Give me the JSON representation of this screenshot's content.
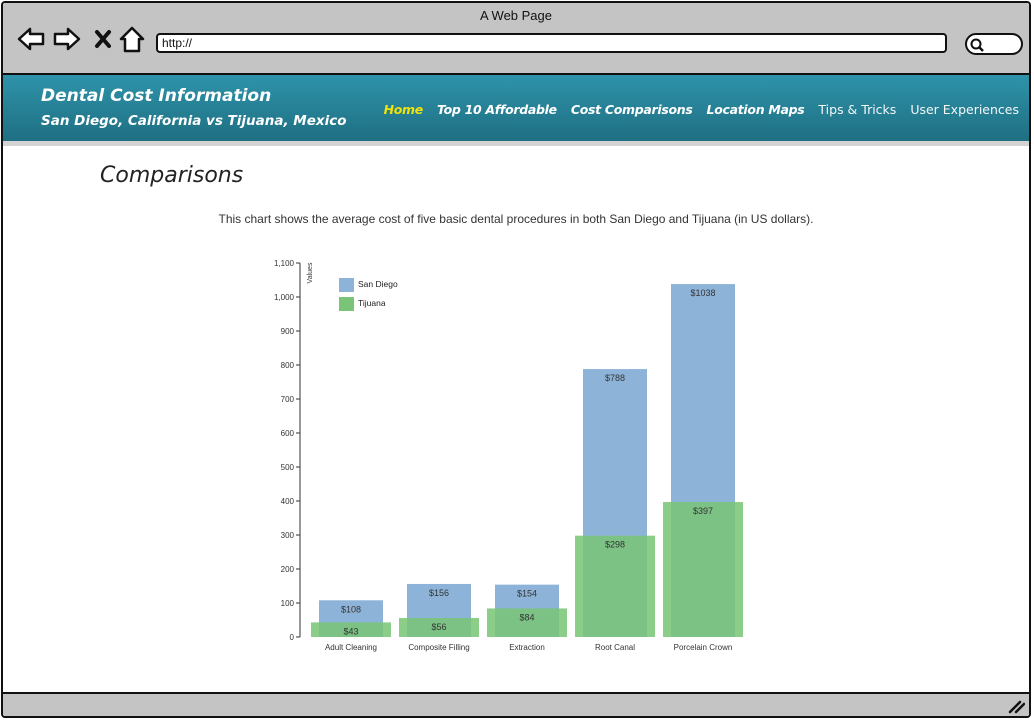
{
  "browser": {
    "title": "A Web Page",
    "url": "http://"
  },
  "site": {
    "title": "Dental Cost Information",
    "subtitle": "San Diego, California vs Tijuana, Mexico",
    "nav": [
      {
        "label": "Home",
        "active": true
      },
      {
        "label": "Top 10 Affordable",
        "active": false
      },
      {
        "label": "Cost Comparisons",
        "active": false
      },
      {
        "label": "Location Maps",
        "active": false
      },
      {
        "label": "Tips & Tricks",
        "active": false
      },
      {
        "label": "User Experiences",
        "active": false
      }
    ]
  },
  "content": {
    "heading": "Comparisons",
    "intro": "This chart shows the average cost of five basic dental procedures in both San Diego and Tijuana (in US dollars)."
  },
  "colors": {
    "header": "#2a8aa0",
    "nav_active": "#f1e20b",
    "san_diego": "#8db3d8",
    "tijuana": "#79c476"
  },
  "chart_data": {
    "type": "bar",
    "ylabel": "Values",
    "ylim": [
      0,
      1100
    ],
    "yticks": [
      "0",
      "100",
      "200",
      "300",
      "400",
      "500",
      "600",
      "700",
      "800",
      "900",
      "1,000",
      "1,100"
    ],
    "legend_position": "top-left",
    "categories": [
      "Adult Cleaning",
      "Composite Filling",
      "Extraction",
      "Root Canal",
      "Porcelain Crown"
    ],
    "series": [
      {
        "name": "San Diego",
        "color": "#8db3d8",
        "values": [
          108,
          156,
          154,
          788,
          1038
        ],
        "labels": [
          "$108",
          "$156",
          "$154",
          "$788",
          "$1038"
        ]
      },
      {
        "name": "Tijuana",
        "color": "#79c476",
        "values": [
          43,
          56,
          84,
          298,
          397
        ],
        "labels": [
          "$43",
          "$56",
          "$84",
          "$298",
          "$397"
        ]
      }
    ]
  }
}
